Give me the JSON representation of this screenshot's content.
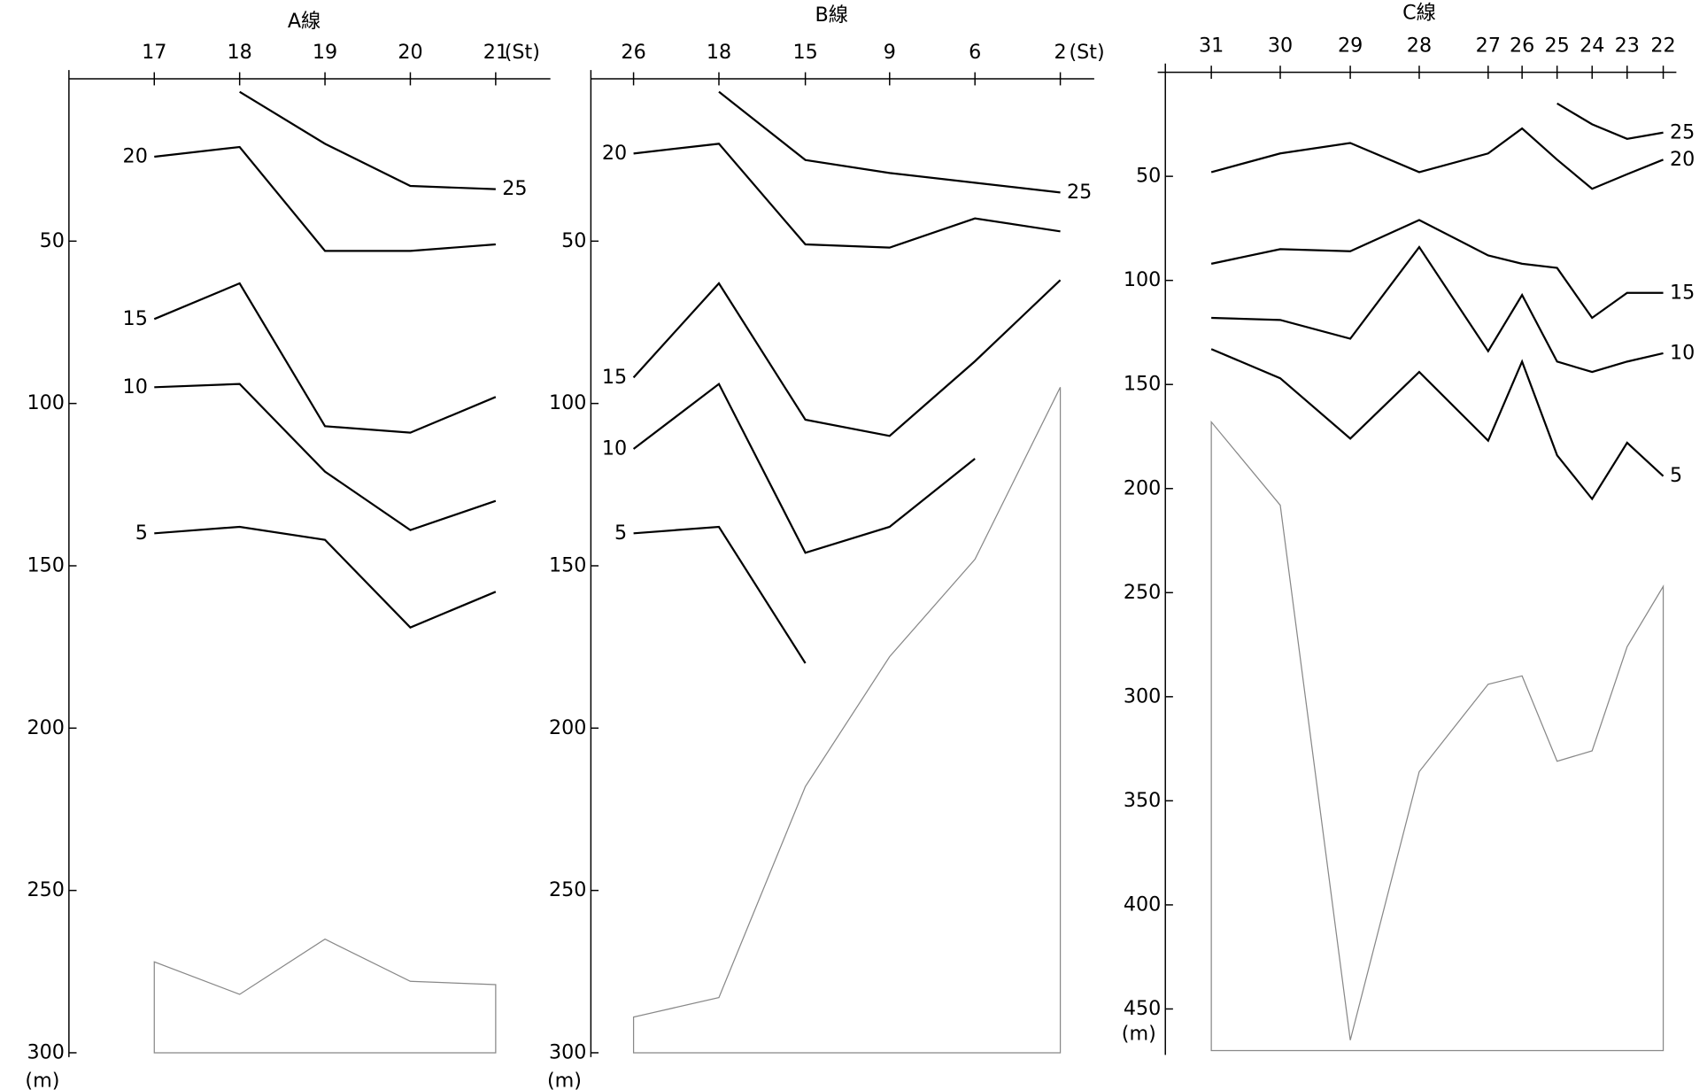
{
  "chart_data": [
    {
      "type": "contour",
      "title": "A線",
      "x_label": "(St)",
      "y_label": "(m)",
      "categories": [
        "17",
        "18",
        "19",
        "20",
        "21"
      ],
      "ylim": [
        0,
        300
      ],
      "yticks": [
        50,
        100,
        150,
        200,
        250,
        300
      ],
      "contours": [
        {
          "level": 25,
          "depths": [
            null,
            4,
            20,
            33,
            34
          ]
        },
        {
          "level": 20,
          "depths": [
            24,
            21,
            53,
            53,
            51
          ]
        },
        {
          "level": 15,
          "depths": [
            74,
            63,
            107,
            109,
            98
          ]
        },
        {
          "level": 10,
          "depths": [
            95,
            94,
            121,
            139,
            130
          ]
        },
        {
          "level": 5,
          "depths": [
            140,
            138,
            142,
            169,
            158
          ]
        }
      ],
      "bottom": [
        272,
        282,
        265,
        278,
        279
      ]
    },
    {
      "type": "contour",
      "title": "B線",
      "x_label": "(St)",
      "y_label": "(m)",
      "categories": [
        "26",
        "18",
        "15",
        "9",
        "6",
        "2"
      ],
      "ylim": [
        0,
        300
      ],
      "yticks": [
        50,
        100,
        150,
        200,
        250,
        300
      ],
      "contours": [
        {
          "level": 25,
          "depths": [
            null,
            4,
            25,
            29,
            32,
            35
          ]
        },
        {
          "level": 20,
          "depths": [
            23,
            20,
            51,
            52,
            43,
            47
          ]
        },
        {
          "level": 15,
          "depths": [
            92,
            63,
            105,
            110,
            87,
            62
          ]
        },
        {
          "level": 10,
          "depths": [
            114,
            94,
            146,
            138,
            117,
            null
          ]
        },
        {
          "level": 5,
          "depths": [
            140,
            138,
            180,
            null,
            null,
            null
          ]
        }
      ],
      "bottom": [
        289,
        283,
        218,
        178,
        148,
        95
      ]
    },
    {
      "type": "contour",
      "title": "C線",
      "y_label": "(m)",
      "categories": [
        "31",
        "30",
        "29",
        "28",
        "27",
        "26",
        "25",
        "24",
        "23",
        "22"
      ],
      "ylim": [
        0,
        470
      ],
      "yticks": [
        50,
        100,
        150,
        200,
        250,
        300,
        350,
        400,
        450
      ],
      "contours": [
        {
          "level": 25,
          "depths": [
            null,
            null,
            null,
            null,
            null,
            null,
            15,
            25,
            32,
            29
          ]
        },
        {
          "level": 20,
          "depths": [
            48,
            39,
            34,
            48,
            39,
            27,
            42,
            56,
            49,
            42
          ]
        },
        {
          "level": 15,
          "depths": [
            92,
            85,
            86,
            71,
            88,
            92,
            94,
            118,
            106,
            106
          ]
        },
        {
          "level": 10,
          "depths": [
            118,
            119,
            128,
            84,
            134,
            107,
            139,
            144,
            139,
            135
          ]
        },
        {
          "level": 5,
          "depths": [
            133,
            147,
            176,
            144,
            177,
            139,
            184,
            205,
            178,
            194
          ]
        }
      ],
      "bottom": [
        168,
        208,
        465,
        336,
        294,
        290,
        331,
        326,
        276,
        247
      ]
    }
  ]
}
